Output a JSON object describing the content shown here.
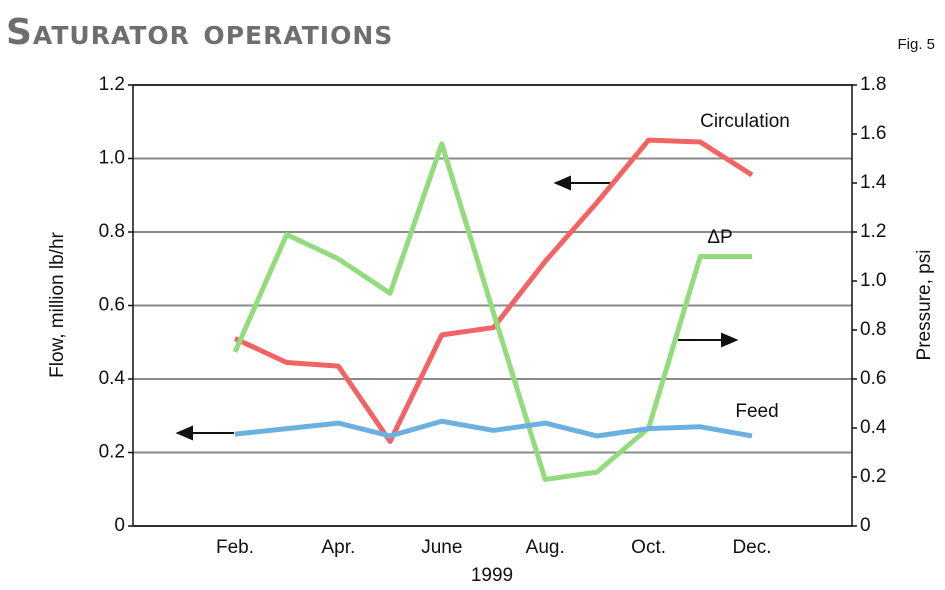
{
  "chart_data": {
    "type": "line",
    "title": "Saturator operations",
    "annotation": "Fig. 5",
    "x_label": "1999",
    "y_label": "Flow, million lb/hr",
    "y2_label": "Pressure, psi",
    "categories": [
      "Feb.",
      null,
      "Apr.",
      null,
      "June",
      null,
      "Aug.",
      null,
      "Oct.",
      null,
      "Dec."
    ],
    "series": [
      {
        "name": "Circulation",
        "color": "#f26464",
        "values": [
          0.51,
          0.445,
          0.435,
          0.23,
          0.52,
          0.54,
          0.72,
          0.88,
          1.05,
          1.045,
          0.955
        ]
      },
      {
        "name": "ΔP",
        "color": "#92dc7e",
        "axis": "y2",
        "values": [
          0.71,
          1.19,
          1.09,
          0.95,
          1.56,
          0.87,
          0.19,
          0.22,
          0.4,
          1.1,
          1.1
        ]
      },
      {
        "name": "Feed",
        "color": "#6cb0e2",
        "values": [
          0.25,
          0.265,
          0.28,
          0.245,
          0.285,
          0.26,
          0.28,
          0.245,
          0.265,
          0.27,
          0.245
        ]
      }
    ],
    "ylim": [
      0,
      1.2
    ],
    "yticks": [
      0,
      0.2,
      0.4,
      0.6,
      0.8,
      {
        "value": 1,
        "label": "1.0"
      },
      1.2
    ],
    "y2lim": [
      0,
      1.8
    ],
    "y2ticks": [
      0,
      0.2,
      0.4,
      0.6,
      0.8,
      {
        "value": 1,
        "label": "1.0"
      },
      1.2,
      1.4,
      1.6,
      1.8
    ],
    "grid": true
  }
}
